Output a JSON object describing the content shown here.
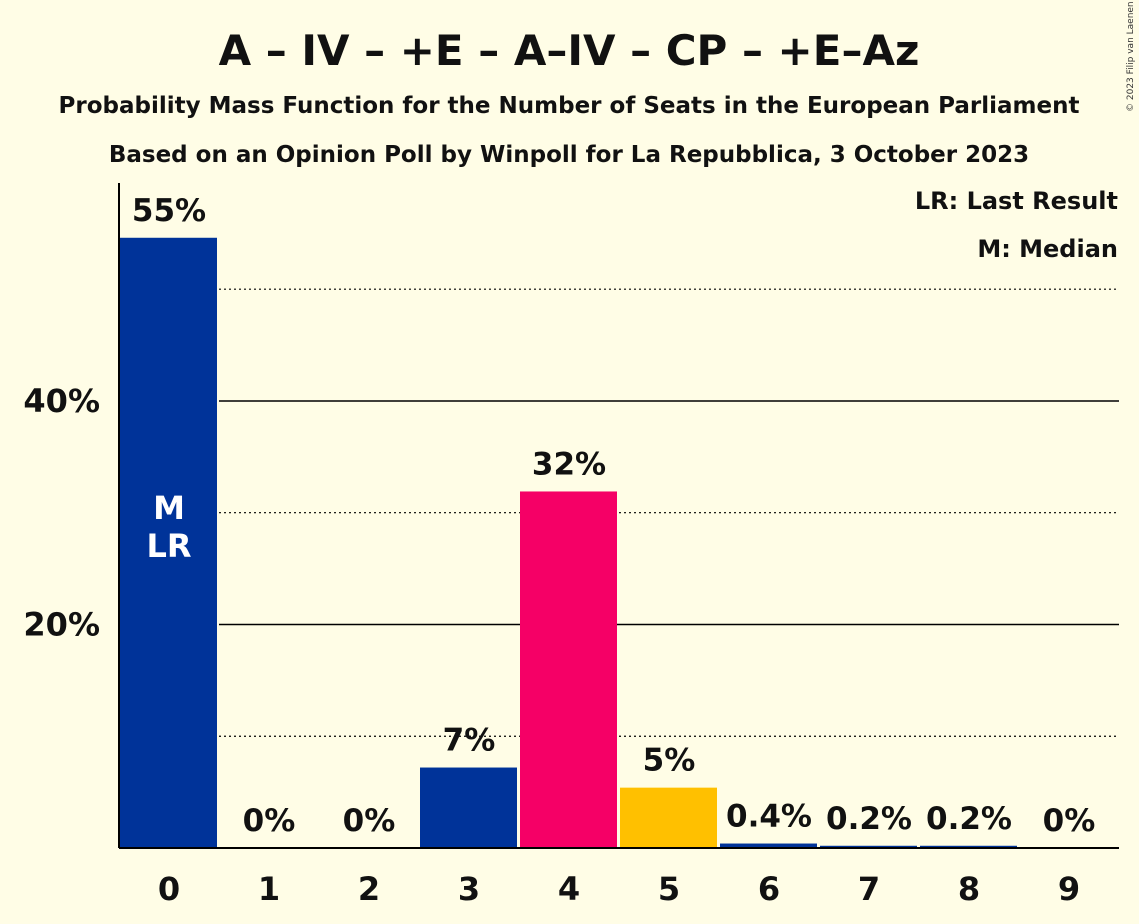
{
  "chart_data": {
    "type": "bar",
    "title": "A – IV – +E – A–IV – CP – +E–Az",
    "subtitle1": "Probability Mass Function for the Number of Seats in the European Parliament",
    "subtitle2": "Based on an Opinion Poll by Winpoll for La Repubblica, 3 October 2023",
    "copyright": "© 2023 Filip van Laenen",
    "legend": [
      "LR: Last Result",
      "M: Median"
    ],
    "categories": [
      "0",
      "1",
      "2",
      "3",
      "4",
      "5",
      "6",
      "7",
      "8",
      "9"
    ],
    "values": [
      54.6,
      0,
      0,
      7.2,
      31.9,
      5.4,
      0.4,
      0.2,
      0.2,
      0
    ],
    "value_labels": [
      "55%",
      "0%",
      "0%",
      "7%",
      "32%",
      "5%",
      "0.4%",
      "0.2%",
      "0.2%",
      "0%"
    ],
    "bar_colors": [
      "#003399",
      "#003399",
      "#003399",
      "#003399",
      "#f50066",
      "#ffc000",
      "#003399",
      "#003399",
      "#003399",
      "#003399"
    ],
    "yticks": [
      {
        "value": 20,
        "label": "20%"
      },
      {
        "value": 40,
        "label": "40%"
      }
    ],
    "dotted_gridlines": [
      10,
      30,
      50
    ],
    "ylim": [
      0,
      59.5
    ],
    "median_index": 0,
    "last_result_index": 0,
    "median_marker": "M",
    "last_result_marker": "LR",
    "legend_placement": "top-right"
  }
}
